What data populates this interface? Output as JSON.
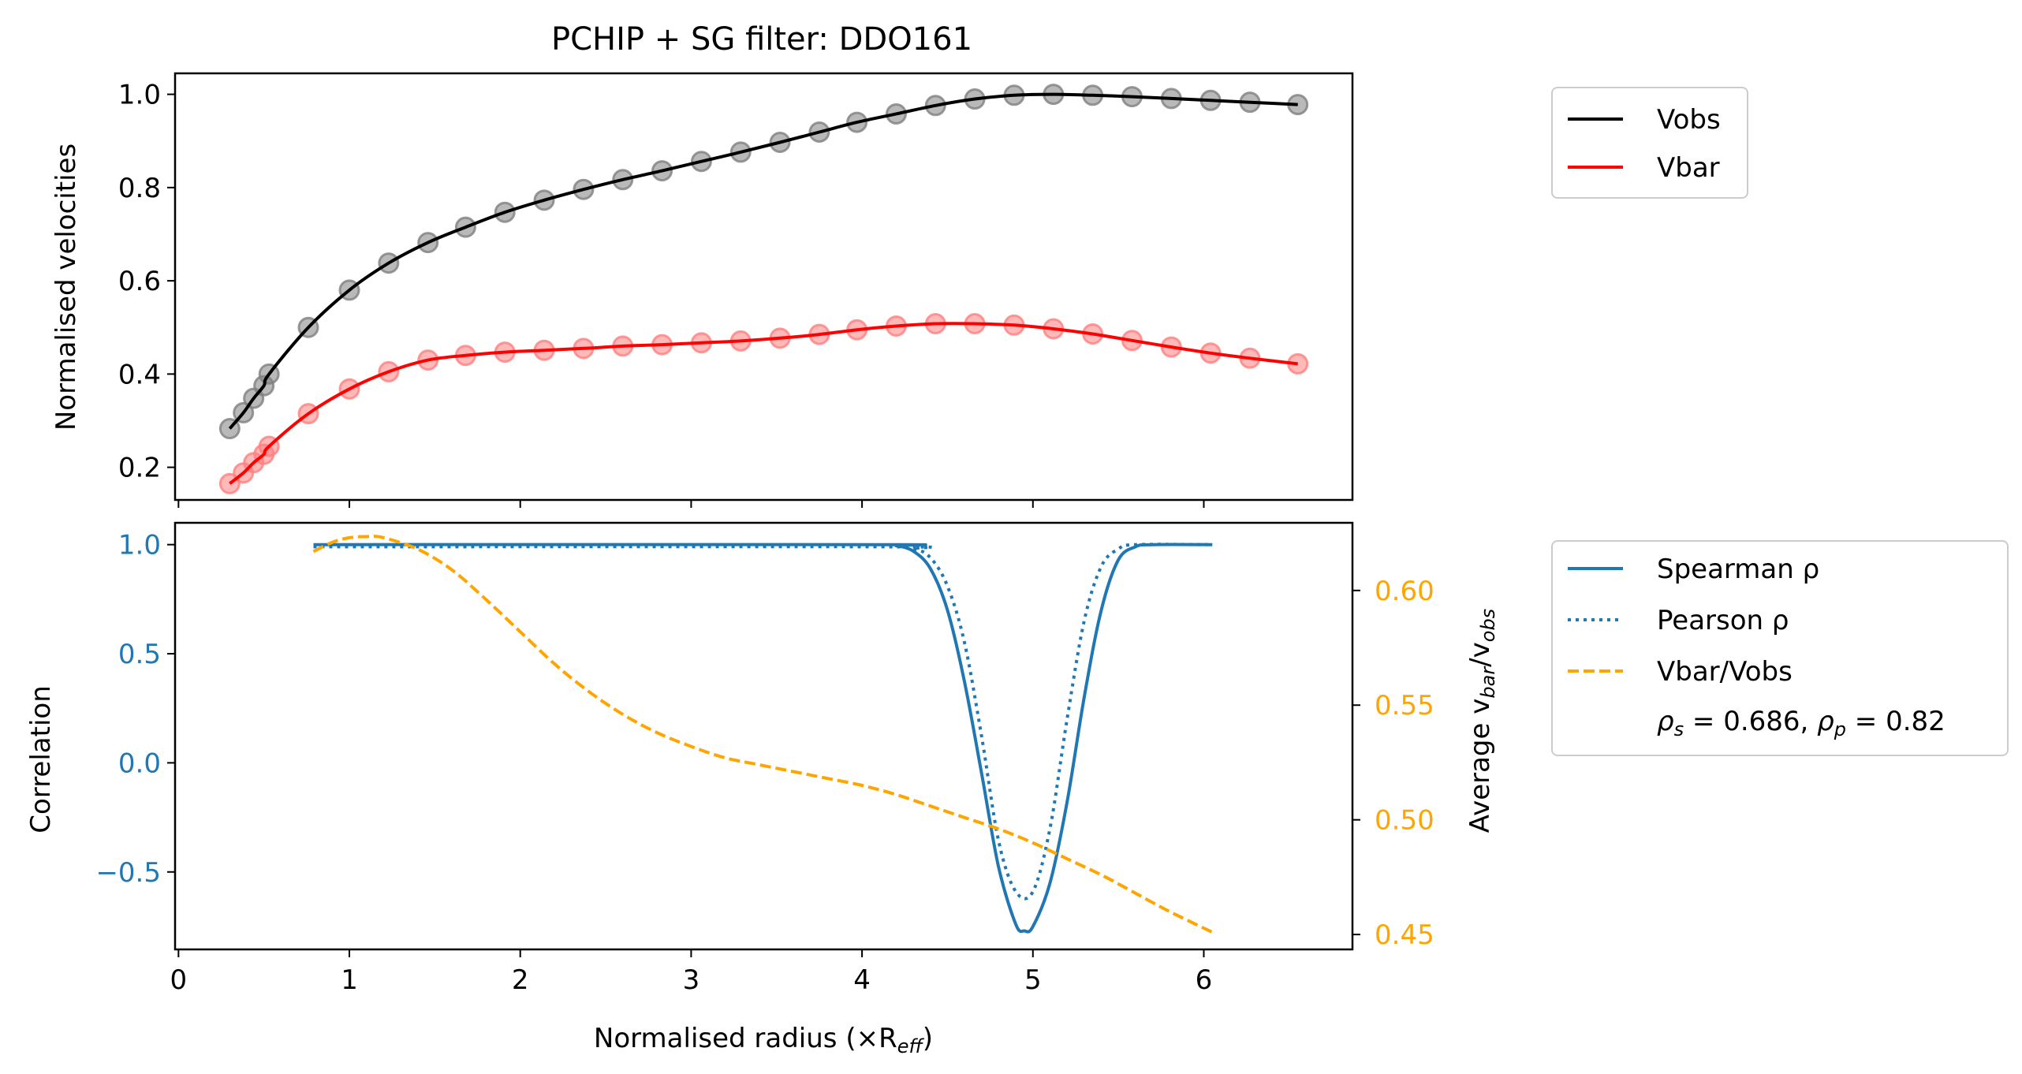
{
  "chart_data": [
    {
      "type": "line",
      "title": "PCHIP + SG filter: DDO161",
      "xlabel": "",
      "ylabel": "Normalised velocities",
      "xlim": [
        -0.02,
        6.87
      ],
      "ylim": [
        0.13,
        1.045
      ],
      "xticks": [
        0,
        1,
        2,
        3,
        4,
        5,
        6
      ],
      "yticks": [
        0.2,
        0.4,
        0.6,
        0.8,
        1.0
      ],
      "ytick_labels": [
        "0.2",
        "0.4",
        "0.6",
        "0.8",
        "1.0"
      ],
      "legend": {
        "position": "outside-right-top",
        "entries": [
          "Vobs",
          "Vbar"
        ]
      },
      "series": [
        {
          "name": "Vobs",
          "color": "#000000",
          "style": "solid",
          "x": [
            0.3,
            0.38,
            0.44,
            0.5,
            0.53,
            0.76,
            1.0,
            1.23,
            1.46,
            1.68,
            1.91,
            2.14,
            2.37,
            2.6,
            2.83,
            3.06,
            3.29,
            3.52,
            3.75,
            3.97,
            4.2,
            4.43,
            4.66,
            4.89,
            5.12,
            5.35,
            5.58,
            5.81,
            6.04,
            6.27,
            6.55
          ],
          "y": [
            0.283,
            0.317,
            0.348,
            0.375,
            0.4,
            0.5,
            0.58,
            0.638,
            0.682,
            0.715,
            0.747,
            0.773,
            0.796,
            0.817,
            0.836,
            0.856,
            0.876,
            0.897,
            0.919,
            0.94,
            0.958,
            0.976,
            0.99,
            0.998,
            1.0,
            0.998,
            0.995,
            0.991,
            0.987,
            0.983,
            0.978
          ]
        },
        {
          "name": "Vbar",
          "color": "#ff0000",
          "style": "solid",
          "x": [
            0.3,
            0.38,
            0.44,
            0.5,
            0.53,
            0.76,
            1.0,
            1.23,
            1.46,
            1.68,
            1.91,
            2.14,
            2.37,
            2.6,
            2.83,
            3.06,
            3.29,
            3.52,
            3.75,
            3.97,
            4.2,
            4.43,
            4.66,
            4.89,
            5.12,
            5.35,
            5.58,
            5.81,
            6.04,
            6.27,
            6.55
          ],
          "y": [
            0.165,
            0.188,
            0.21,
            0.228,
            0.245,
            0.315,
            0.368,
            0.405,
            0.43,
            0.44,
            0.447,
            0.451,
            0.455,
            0.46,
            0.463,
            0.467,
            0.471,
            0.477,
            0.485,
            0.495,
            0.503,
            0.508,
            0.508,
            0.505,
            0.497,
            0.486,
            0.472,
            0.458,
            0.445,
            0.434,
            0.422
          ]
        }
      ],
      "markers": {
        "Vobs_color": "#808080",
        "Vbar_color": "#ff8080"
      }
    },
    {
      "type": "line",
      "title": "",
      "xlabel": "Normalised radius (×R",
      "xlabel_sub": "eff",
      "xlabel_close": ")",
      "ylabel": "Correlation",
      "ylabel_right_prefix": "Average v",
      "ylabel_right_sub1": "bar",
      "ylabel_right_slash": "/v",
      "ylabel_right_sub2": "obs",
      "xlim": [
        -0.02,
        6.87
      ],
      "ylim": [
        -0.855,
        1.1
      ],
      "ylim_right": [
        0.4435,
        0.6295
      ],
      "xticks": [
        0,
        1,
        2,
        3,
        4,
        5,
        6
      ],
      "xtick_labels": [
        "0",
        "1",
        "2",
        "3",
        "4",
        "5",
        "6"
      ],
      "yticks": [
        -0.5,
        0.0,
        0.5,
        1.0
      ],
      "ytick_labels": [
        "−0.5",
        "0.0",
        "0.5",
        "1.0"
      ],
      "yticks_right": [
        0.45,
        0.5,
        0.55,
        0.6
      ],
      "ytick_labels_right": [
        "0.45",
        "0.50",
        "0.55",
        "0.60"
      ],
      "legend": {
        "position": "outside-right-top",
        "entries": [
          "Spearman ρ",
          "Pearson ρ",
          "Vbar/Vobs"
        ],
        "annotation": {
          "rho_s_label": "ρ",
          "rho_s_sub": "s",
          "rho_s_value": " = 0.686, ",
          "rho_p_label": "ρ",
          "rho_p_sub": "p",
          "rho_p_value": " = 0.82"
        }
      },
      "series": [
        {
          "name": "Spearman ρ",
          "color": "#1f77b4",
          "style": "solid",
          "axis": "left",
          "x": [
            0.79,
            4.1,
            4.2,
            4.3,
            4.4,
            4.5,
            4.6,
            4.7,
            4.8,
            4.9,
            4.95,
            5.0,
            5.1,
            5.2,
            5.3,
            5.4,
            5.5,
            5.6,
            5.7,
            6.05
          ],
          "y": [
            1.0,
            1.0,
            0.995,
            0.97,
            0.89,
            0.7,
            0.37,
            -0.05,
            -0.48,
            -0.74,
            -0.77,
            -0.75,
            -0.55,
            -0.18,
            0.3,
            0.7,
            0.93,
            0.99,
            1.0,
            1.0
          ]
        },
        {
          "name": "Pearson ρ",
          "color": "#1f77b4",
          "style": "dotted",
          "axis": "left",
          "x": [
            0.79,
            4.1,
            4.3,
            4.4,
            4.5,
            4.6,
            4.7,
            4.8,
            4.9,
            5.0,
            5.1,
            5.2,
            5.3,
            5.4,
            5.5,
            5.6,
            6.05
          ],
          "y": [
            0.99,
            0.99,
            0.98,
            0.94,
            0.81,
            0.55,
            0.12,
            -0.36,
            -0.59,
            -0.59,
            -0.3,
            0.2,
            0.65,
            0.9,
            0.98,
            1.0,
            1.0
          ]
        },
        {
          "name": "Vbar/Vobs",
          "color": "#ffa500",
          "style": "dashed",
          "axis": "right",
          "x": [
            0.79,
            0.9,
            1.0,
            1.1,
            1.2,
            1.4,
            1.6,
            1.8,
            2.0,
            2.2,
            2.4,
            2.6,
            2.8,
            3.0,
            3.2,
            3.4,
            3.6,
            3.8,
            4.0,
            4.2,
            4.4,
            4.6,
            4.8,
            5.0,
            5.2,
            5.4,
            5.6,
            5.8,
            6.05
          ],
          "y": [
            0.617,
            0.621,
            0.623,
            0.6235,
            0.623,
            0.618,
            0.609,
            0.596,
            0.582,
            0.568,
            0.556,
            0.546,
            0.538,
            0.532,
            0.527,
            0.524,
            0.521,
            0.518,
            0.515,
            0.511,
            0.506,
            0.501,
            0.496,
            0.49,
            0.483,
            0.476,
            0.468,
            0.46,
            0.451
          ]
        }
      ]
    }
  ]
}
